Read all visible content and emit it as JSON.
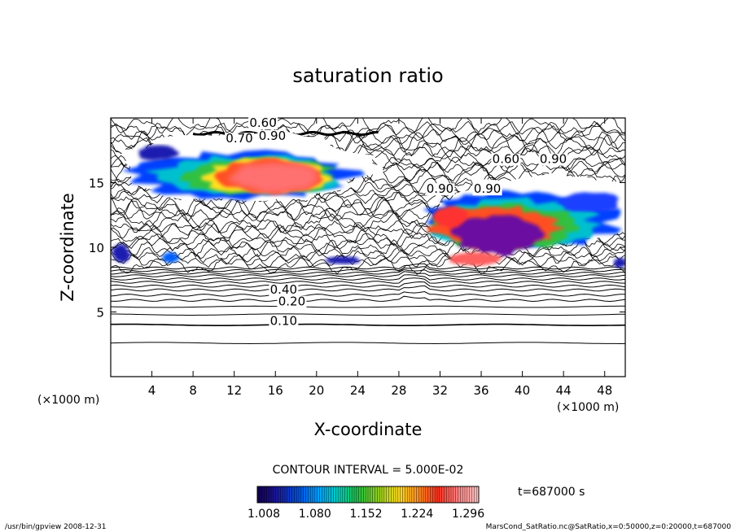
{
  "chart_data": {
    "type": "heatmap",
    "title": "saturation ratio",
    "xlabel": "X-coordinate",
    "ylabel": "Z-coordinate",
    "x_unit": "(×1000 m)",
    "y_unit": "(×1000 m)",
    "xlim": [
      0,
      50
    ],
    "ylim": [
      0,
      20
    ],
    "x_ticks": [
      4,
      8,
      12,
      16,
      20,
      24,
      28,
      32,
      36,
      40,
      44,
      48
    ],
    "y_ticks": [
      5,
      10,
      15
    ],
    "contour_interval_text": "CONTOUR INTERVAL = 5.000E-02",
    "time_text": "t=687000 s",
    "colorbar": {
      "min": 1.008,
      "max": 1.32,
      "tick_labels": [
        "1.008",
        "1.080",
        "1.152",
        "1.224",
        "1.296"
      ],
      "tick_values": [
        1.008,
        1.08,
        1.152,
        1.224,
        1.296
      ],
      "colors": [
        "#140050",
        "#1a1aa0",
        "#0050e0",
        "#00a0ff",
        "#00d0c0",
        "#20c040",
        "#90d020",
        "#ffe020",
        "#ff9020",
        "#ff3020",
        "#ff8080",
        "#ffc0c0"
      ]
    },
    "contour_labels": [
      {
        "text": "0.10",
        "x": 16.8,
        "z": 4.0
      },
      {
        "text": "0.20",
        "x": 17.6,
        "z": 5.5
      },
      {
        "text": "0.40",
        "x": 16.8,
        "z": 6.4
      },
      {
        "text": "0.60",
        "x": 14.8,
        "z": 19.3
      },
      {
        "text": "0.70",
        "x": 12.5,
        "z": 18.1
      },
      {
        "text": "0.90",
        "x": 15.7,
        "z": 18.3
      },
      {
        "text": "0.60",
        "x": 38.4,
        "z": 16.5
      },
      {
        "text": "0.90",
        "x": 43.0,
        "z": 16.5
      },
      {
        "text": "0.90",
        "x": 32.0,
        "z": 14.2
      },
      {
        "text": "0.90",
        "x": 36.6,
        "z": 14.2
      }
    ],
    "grid": false
  },
  "footer": {
    "left": "/usr/bin/gpview   2008-12-31",
    "right": "MarsCond_SatRatio.nc@SatRatio,x=0:50000,z=0:20000,t=687000"
  }
}
